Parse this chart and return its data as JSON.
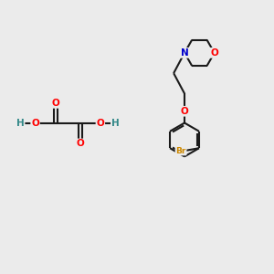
{
  "bg_color": "#ebebeb",
  "bond_color": "#1a1a1a",
  "bond_width": 1.5,
  "atom_colors": {
    "O": "#ff0000",
    "N": "#0000cc",
    "Br": "#cc8800",
    "H": "#338888",
    "C": "#1a1a1a"
  },
  "font_size": 7.5
}
